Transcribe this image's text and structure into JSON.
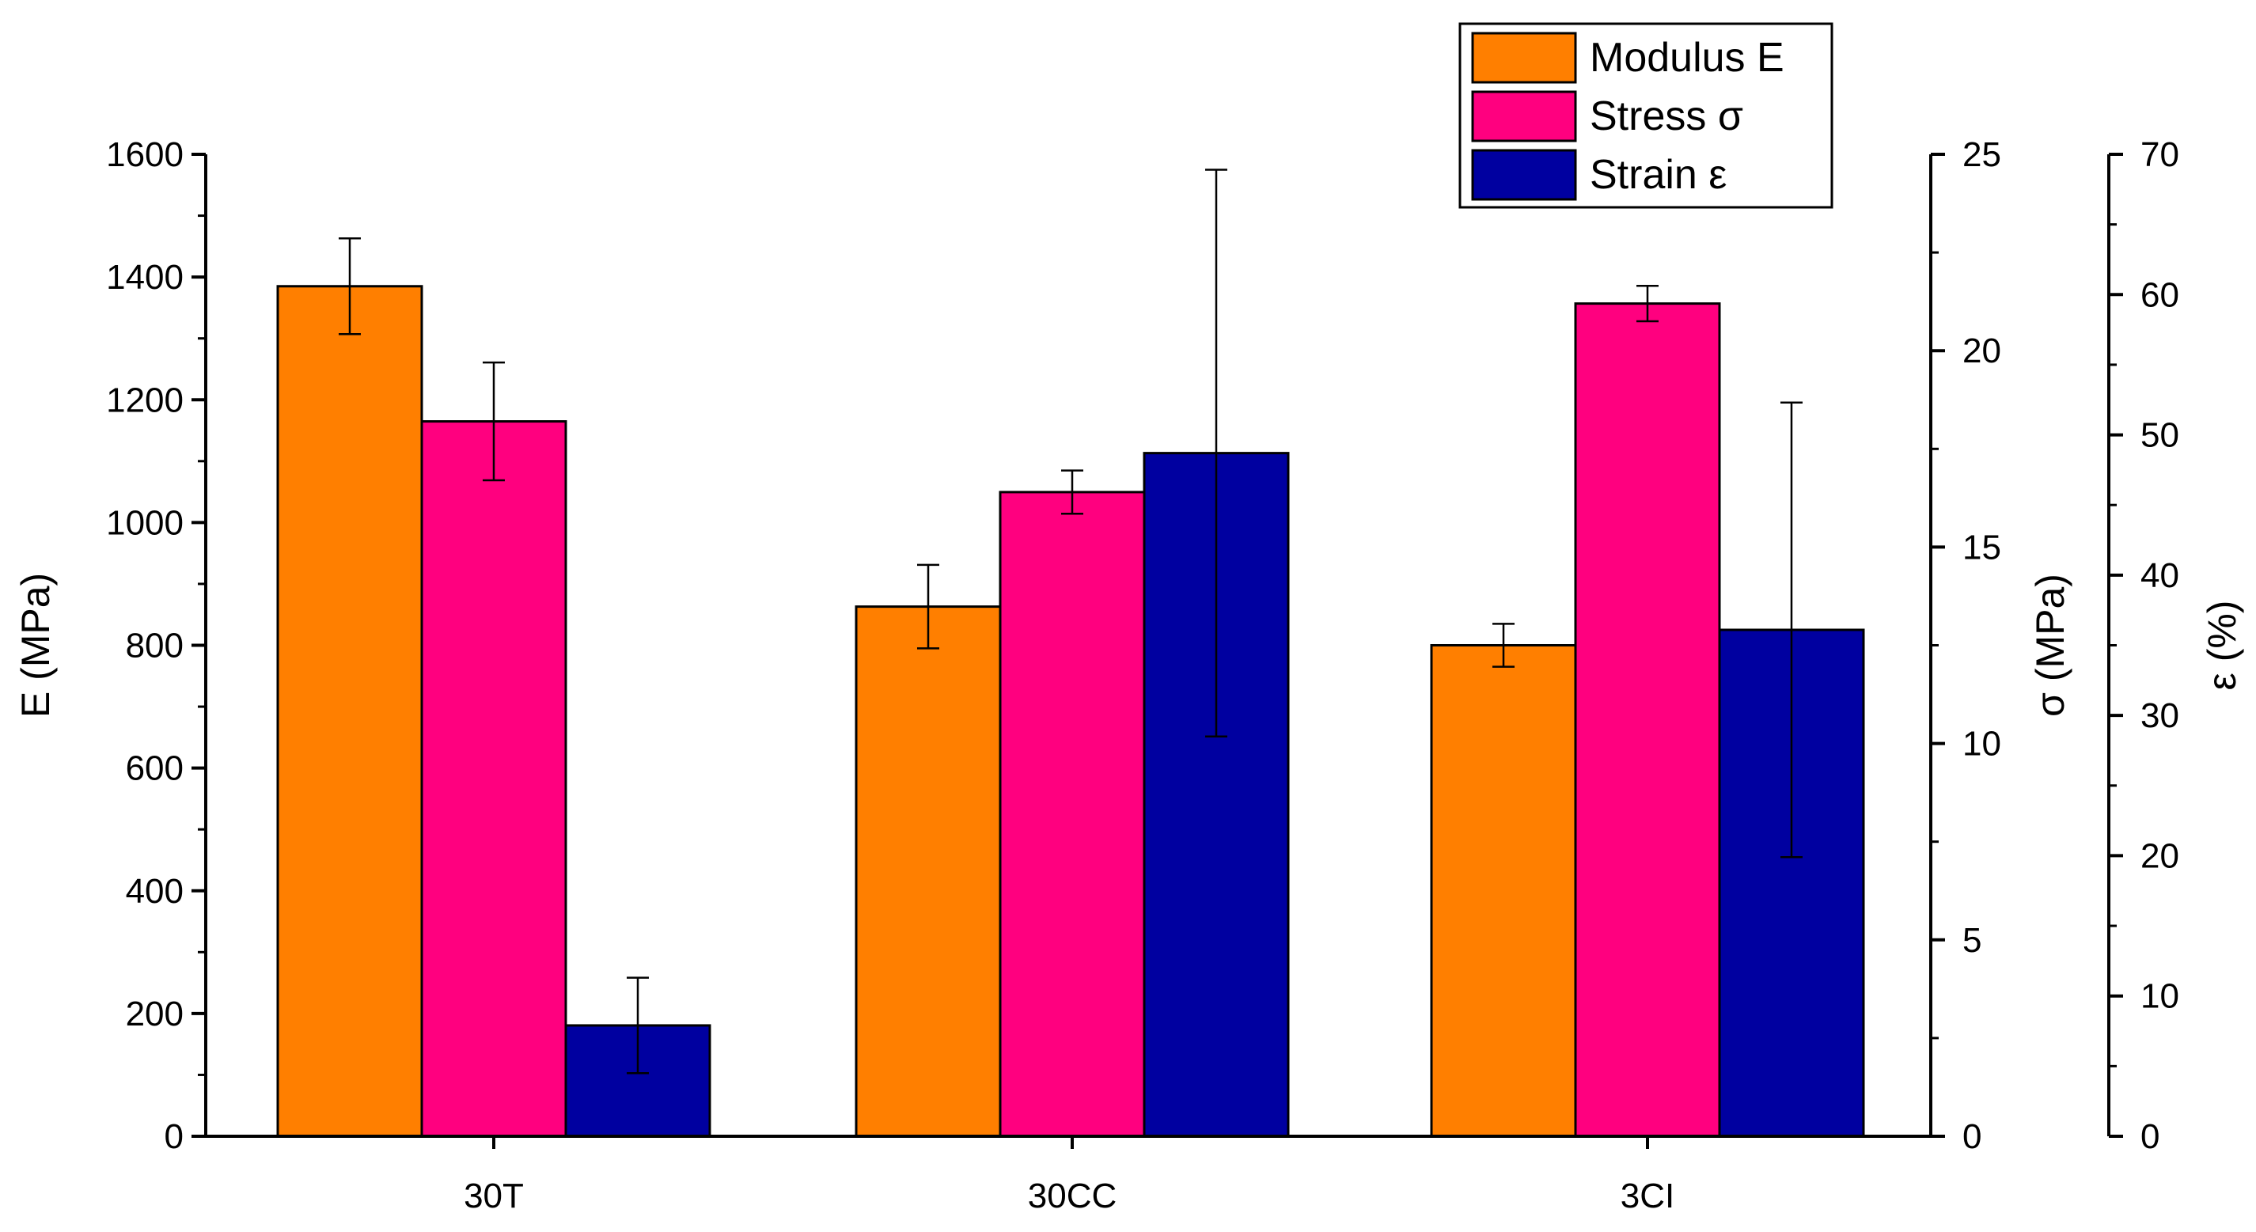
{
  "chart_data": {
    "type": "bar",
    "categories": [
      "30T",
      "30CC",
      "3CI"
    ],
    "series": [
      {
        "name": "Modulus E",
        "axis": "E",
        "color": "#ff7f00",
        "values": [
          1385,
          863,
          800
        ],
        "errors": [
          78,
          68,
          35
        ]
      },
      {
        "name": "Stress σ",
        "axis": "sigma",
        "color": "#ff007f",
        "values": [
          18.2,
          16.4,
          21.2
        ],
        "errors": [
          1.5,
          0.55,
          0.45
        ]
      },
      {
        "name": "Strain ε",
        "axis": "eps",
        "color": "#0000a0",
        "values": [
          7.9,
          48.7,
          36.1
        ],
        "errors": [
          3.4,
          20.2,
          16.2
        ]
      }
    ],
    "axes": {
      "E": {
        "label": "E (MPa)",
        "ylim": [
          0,
          1600
        ],
        "ticks": [
          0,
          200,
          400,
          600,
          800,
          1000,
          1200,
          1400,
          1600
        ],
        "minor_step": 100
      },
      "sigma": {
        "label": "σ (MPa)",
        "ylim": [
          0,
          25
        ],
        "ticks": [
          0,
          5,
          10,
          15,
          20,
          25
        ],
        "minor_step": 2.5
      },
      "eps": {
        "label": "ε (%)",
        "ylim": [
          0,
          70
        ],
        "ticks": [
          0,
          10,
          20,
          30,
          40,
          50,
          60,
          70
        ],
        "minor_step": 5
      }
    },
    "legend_position": "top-right",
    "grid": false
  }
}
